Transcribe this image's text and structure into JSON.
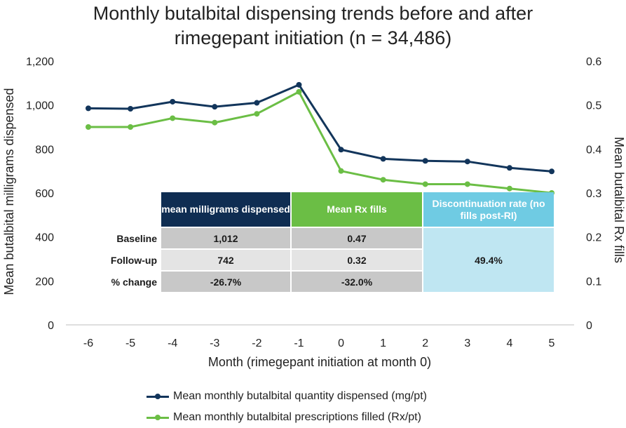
{
  "title_lines": [
    "Monthly butalbital dispensing trends before and after",
    "rimegepant initiation (n = 34,486)"
  ],
  "colors": {
    "mg_series": "#12355b",
    "rx_series": "#6bbe45",
    "axis": "#bfbfbf",
    "text": "#222222"
  },
  "chart_data": {
    "type": "line",
    "title": "Monthly butalbital dispensing trends before and after rimegepant initiation (n = 34,486)",
    "xlabel": "Month (rimegepant initiation at month 0)",
    "ylabel": "Mean butalbital milligrams dispensed",
    "y2label": "Mean butalbital Rx fills",
    "x": [
      -6,
      -5,
      -4,
      -3,
      -2,
      -1,
      0,
      1,
      2,
      3,
      4,
      5
    ],
    "x_tick_labels": [
      "-6",
      "-5",
      "-4",
      "-3",
      "-2",
      "-1",
      "0",
      "1",
      "2",
      "3",
      "4",
      "5"
    ],
    "ylim": [
      0,
      1200
    ],
    "y_tick_values": [
      0,
      200,
      400,
      600,
      800,
      1000,
      1200
    ],
    "y_tick_labels": [
      "0",
      "200",
      "400",
      "600",
      "800",
      "1,000",
      "1,200"
    ],
    "y2lim": [
      0,
      0.6
    ],
    "y2_tick_values": [
      0,
      0.1,
      0.2,
      0.3,
      0.4,
      0.5,
      0.6
    ],
    "y2_tick_labels": [
      "0",
      "0.1",
      "0.2",
      "0.3",
      "0.4",
      "0.5",
      "0.6"
    ],
    "grid": false,
    "legend_position": "bottom",
    "series": [
      {
        "name": "Mean monthly butalbital quantity dispensed (mg/pt)",
        "axis": "left",
        "values": [
          985,
          983,
          1015,
          992,
          1010,
          1092,
          797,
          755,
          746,
          743,
          714,
          698
        ]
      },
      {
        "name": "Mean monthly butalbital prescriptions filled (Rx/pt)",
        "axis": "right",
        "values": [
          0.45,
          0.45,
          0.47,
          0.46,
          0.48,
          0.53,
          0.35,
          0.33,
          0.32,
          0.32,
          0.31,
          0.3
        ]
      }
    ]
  },
  "table": {
    "headers": [
      "mean milligrams dispensed",
      "Mean Rx fills",
      "Discontinuation rate (no fills post-RI)"
    ],
    "rows": [
      {
        "label": "Baseline",
        "mg": "1,012",
        "rx": "0.47"
      },
      {
        "label": "Follow-up",
        "mg": "742",
        "rx": "0.32"
      },
      {
        "label": "% change",
        "mg": "-26.7%",
        "rx": "-32.0%"
      }
    ],
    "discontinuation_value": "49.4%"
  }
}
